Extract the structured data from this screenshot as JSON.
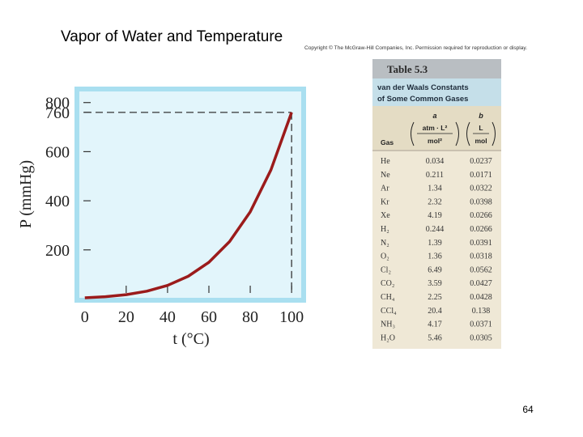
{
  "slide": {
    "title": "Vapor of Water and Temperature",
    "copyright": "Copyright © The McGraw-Hill Companies, Inc. Permission required for reproduction or display.",
    "page_number": "64"
  },
  "chart_data": {
    "type": "line",
    "x_label": "t (°C)",
    "y_label": "P (mmHg)",
    "x": [
      0,
      10,
      20,
      30,
      40,
      50,
      60,
      70,
      80,
      90,
      100
    ],
    "series": [
      {
        "color": "#9b1b1b",
        "values": [
          4.6,
          9.2,
          17.5,
          31.8,
          55.3,
          92.5,
          149.4,
          233.7,
          355.1,
          525.8,
          760
        ]
      }
    ],
    "xlim": [
      -5,
      107
    ],
    "ylim": [
      -15,
      865
    ],
    "xticks": [
      0,
      20,
      40,
      60,
      80,
      100
    ],
    "yticks": [
      200,
      400,
      600,
      760,
      800
    ]
  },
  "table": {
    "title": "Table 5.3",
    "subtitle": [
      "van der Waals Constants",
      "of Some Common Gases"
    ],
    "header": {
      "gas": "Gas",
      "a": "a",
      "a_unit_top": "atm · L²",
      "a_unit_bottom": "mol²",
      "b": "b",
      "b_unit_top": "L",
      "b_unit_bottom": "mol"
    },
    "rows": [
      [
        "He",
        "0.034",
        "0.0237"
      ],
      [
        "Ne",
        "0.211",
        "0.0171"
      ],
      [
        "Ar",
        "1.34",
        "0.0322"
      ],
      [
        "Kr",
        "2.32",
        "0.0398"
      ],
      [
        "Xe",
        "4.19",
        "0.0266"
      ],
      [
        "H₂",
        "0.244",
        "0.0266"
      ],
      [
        "N₂",
        "1.39",
        "0.0391"
      ],
      [
        "O₂",
        "1.36",
        "0.0318"
      ],
      [
        "Cl₂",
        "6.49",
        "0.0562"
      ],
      [
        "CO₂",
        "3.59",
        "0.0427"
      ],
      [
        "CH₄",
        "2.25",
        "0.0428"
      ],
      [
        "CCl₄",
        "20.4",
        "0.138"
      ],
      [
        "NH₃",
        "4.17",
        "0.0371"
      ],
      [
        "H₂O",
        "5.46",
        "0.0305"
      ]
    ]
  }
}
